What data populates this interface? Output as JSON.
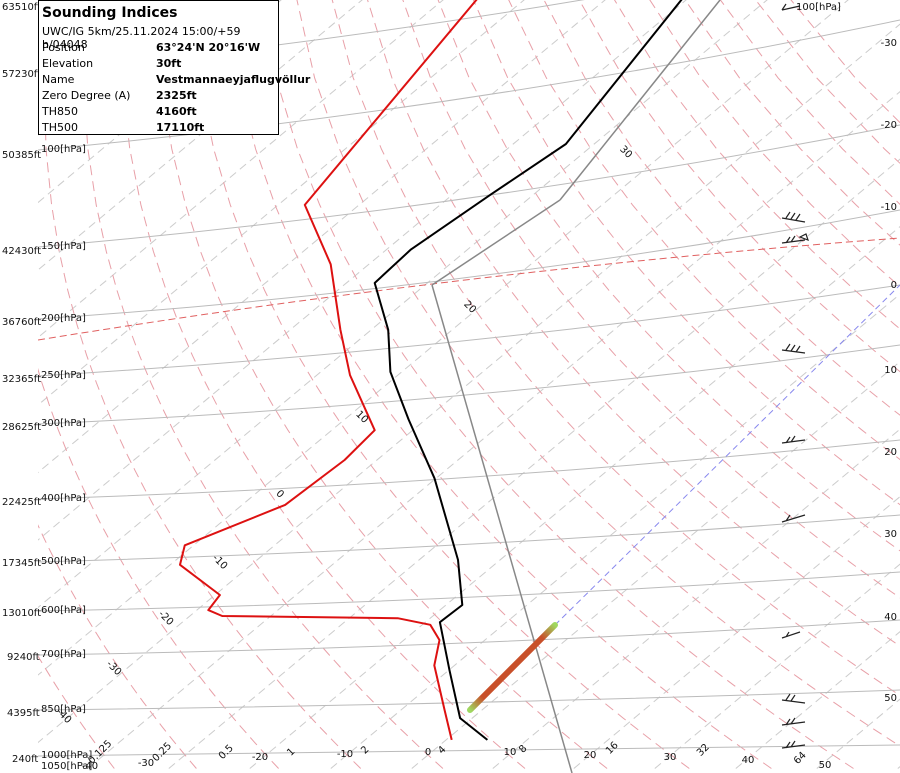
{
  "info_box": {
    "title": "Sounding Indices",
    "run": "UWC/IG 5km/25.11.2024 15:00/+59 h/04048",
    "rows": [
      [
        "Position",
        "63°24'N 20°16'W"
      ],
      [
        "Elevation",
        "30ft"
      ],
      [
        "Name",
        "Vestmannaeyjaflugvöllur"
      ],
      [
        "Zero Degree (A)",
        "2325ft"
      ],
      [
        "TH850",
        "4160ft"
      ],
      [
        "TH500",
        "17110ft"
      ]
    ]
  },
  "altitude_labels": [
    "63510ft",
    "57230ft",
    "50385ft",
    "42430ft",
    "36760ft",
    "32365ft",
    "28625ft",
    "22425ft",
    "17345ft",
    "13010ft",
    "9240ft",
    "4395ft",
    "240ft"
  ],
  "pressure_labels": [
    "100[hPa]",
    "150[hPa]",
    "200[hPa]",
    "250[hPa]",
    "300[hPa]",
    "400[hPa]",
    "500[hPa]",
    "600[hPa]",
    "700[hPa]",
    "850[hPa]",
    "1000[hPa]",
    "1050[hPa]",
    "100[hPa]"
  ],
  "diagonal_labels": [
    "30",
    "20",
    "10",
    "0",
    "-10",
    "-20",
    "-30",
    "-40"
  ],
  "right_labels": [
    "-30",
    "-20",
    "-10",
    "0",
    "10",
    "20",
    "30",
    "40",
    "50"
  ],
  "bottom_labels": [
    "0.125",
    "0.25",
    "0.5",
    "-20",
    "1",
    "-10",
    "2",
    "0",
    "4",
    "10",
    "8",
    "20",
    "16",
    "30",
    "32",
    "40",
    "64",
    "50",
    "-30",
    "-40"
  ],
  "temperature_profile": {
    "color": "#000000",
    "pressure": [
      947,
      875,
      735,
      616,
      578,
      489,
      360,
      288,
      240,
      204,
      170,
      149,
      120,
      98,
      54
    ],
    "temperature": [
      5.1,
      -1.5,
      -9.9,
      -18.2,
      -18.0,
      -25.2,
      -40.2,
      -52.1,
      -61.4,
      -67.9,
      -76.5,
      -77.0,
      -75.3,
      -73.5,
      -80.7
    ]
  },
  "dewpoint_profile": {
    "color": "#dd1111",
    "pressure": [
      947,
      850,
      722,
      658,
      622,
      607,
      602,
      589,
      557,
      498,
      463,
      398,
      336,
      300,
      243,
      204,
      158,
      125,
      54
    ],
    "temperature": [
      0.7,
      -4.6,
      -12.5,
      -15.6,
      -19.0,
      -24.0,
      -46.0,
      -48.6,
      -49.4,
      -58.8,
      -61.1,
      -54.7,
      -54.0,
      -54.7,
      -65.9,
      -73.8,
      -84.7,
      -96.7,
      -106.0
    ]
  }
}
